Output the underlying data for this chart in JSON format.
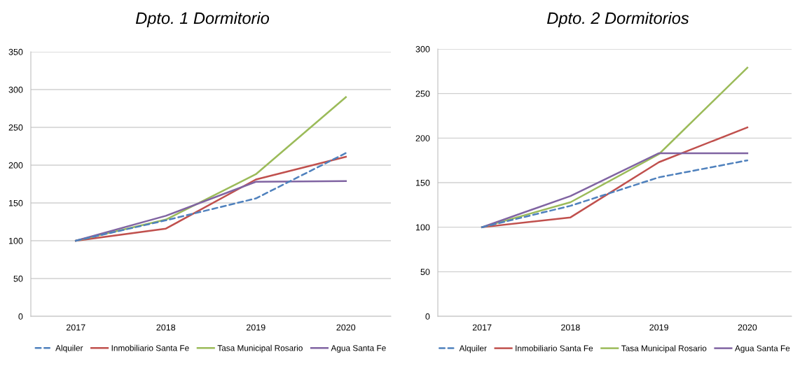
{
  "chart_data": [
    {
      "type": "line",
      "title": "Dpto. 1 Dormitorio",
      "categories": [
        "2017",
        "2018",
        "2019",
        "2020"
      ],
      "ylim": [
        0,
        350
      ],
      "yticks": [
        0,
        50,
        100,
        150,
        200,
        250,
        300,
        350
      ],
      "grid": "y",
      "legend": "bottom",
      "series": [
        {
          "name": "Alquiler",
          "color": "#4f81bd",
          "line_style": "dashed",
          "values": [
            100,
            127,
            156,
            216
          ]
        },
        {
          "name": "Inmobiliario Santa Fe",
          "color": "#c0504d",
          "line_style": "solid",
          "values": [
            100,
            116,
            181,
            211
          ]
        },
        {
          "name": "Tasa Municipal Rosario",
          "color": "#9bbb59",
          "line_style": "solid",
          "values": [
            100,
            128,
            188,
            290
          ]
        },
        {
          "name": "Agua Santa Fe",
          "color": "#8064a2",
          "line_style": "solid",
          "values": [
            100,
            133,
            178,
            179
          ]
        }
      ]
    },
    {
      "type": "line",
      "title": "Dpto. 2 Dormitorios",
      "categories": [
        "2017",
        "2018",
        "2019",
        "2020"
      ],
      "ylim": [
        0,
        300
      ],
      "yticks": [
        0,
        50,
        100,
        150,
        200,
        250,
        300
      ],
      "grid": "y",
      "legend": "bottom",
      "series": [
        {
          "name": "Alquiler",
          "color": "#4f81bd",
          "line_style": "dashed",
          "values": [
            100,
            124,
            156,
            175
          ]
        },
        {
          "name": "Inmobiliario Santa Fe",
          "color": "#c0504d",
          "line_style": "solid",
          "values": [
            100,
            111,
            173,
            212
          ]
        },
        {
          "name": "Tasa Municipal Rosario",
          "color": "#9bbb59",
          "line_style": "solid",
          "values": [
            100,
            128,
            182,
            279
          ]
        },
        {
          "name": "Agua Santa Fe",
          "color": "#8064a2",
          "line_style": "solid",
          "values": [
            100,
            135,
            183,
            183
          ]
        }
      ]
    }
  ]
}
